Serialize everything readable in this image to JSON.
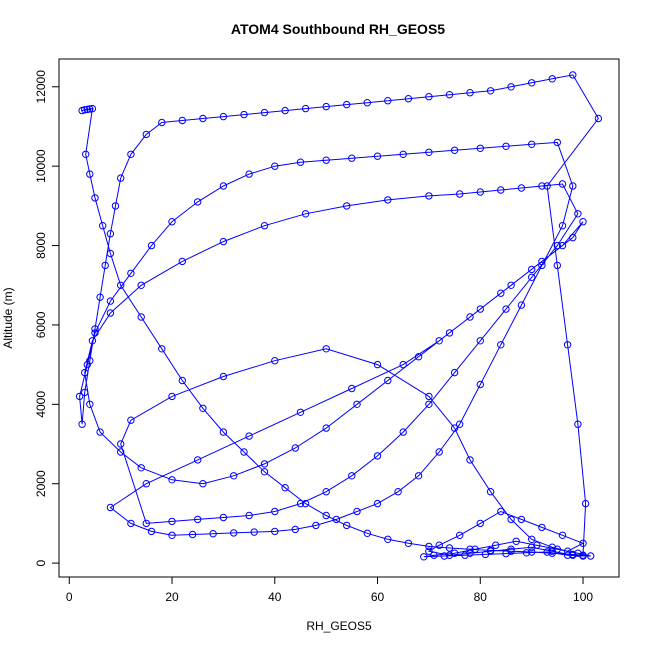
{
  "chart_data": {
    "type": "scatter",
    "title": "ATOM4 Southbound RH_GEOS5",
    "xlabel": "RH_GEOS5",
    "ylabel": "Altitude (m)",
    "xlim": [
      -2,
      107
    ],
    "ylim": [
      -350,
      12700
    ],
    "x_ticks": [
      0,
      20,
      40,
      60,
      80,
      100
    ],
    "y_ticks": [
      0,
      2000,
      4000,
      6000,
      8000,
      10000,
      12000
    ],
    "grid": false,
    "legend": "none",
    "series_color": "#0000FF",
    "connected": true,
    "marker": "open-circle",
    "x": [
      2.5,
      3.0,
      3.5,
      4.0,
      4.5,
      3.2,
      4.0,
      5.0,
      6.5,
      8.0,
      10.0,
      14.0,
      18.0,
      22.0,
      26.0,
      30.0,
      34.0,
      38.0,
      42.0,
      46.0,
      50.0,
      54.0,
      58.0,
      62.0,
      66.0,
      70.0,
      74.0,
      78.0,
      82.0,
      86.0,
      90.0,
      94.0,
      98.0,
      100.0,
      100.5,
      99.0,
      97.0,
      95.0,
      93.0,
      103.0,
      98.0,
      94.0,
      90.0,
      86.0,
      82.0,
      78.0,
      74.0,
      70.0,
      66.0,
      62.0,
      58.0,
      54.0,
      50.0,
      46.0,
      42.0,
      38.0,
      34.0,
      30.0,
      26.0,
      22.0,
      18.0,
      15.0,
      12.0,
      10.0,
      9.0,
      8.0,
      7.0,
      6.0,
      5.0,
      4.0,
      3.0,
      2.5,
      2.0,
      3.5,
      5.0,
      8.0,
      12.0,
      16.0,
      20.0,
      25.0,
      30.0,
      35.0,
      40.0,
      45.0,
      50.0,
      55.0,
      60.0,
      65.0,
      70.0,
      75.0,
      80.0,
      85.0,
      90.0,
      95.0,
      98.0,
      96.0,
      92.0,
      88.0,
      84.0,
      80.0,
      76.0,
      72.0,
      68.0,
      64.0,
      60.0,
      56.0,
      52.0,
      48.0,
      44.0,
      40.0,
      36.0,
      32.0,
      28.0,
      24.0,
      20.0,
      16.0,
      12.0,
      8.0,
      15.0,
      25.0,
      35.0,
      45.0,
      55.0,
      65.0,
      72.0,
      78.0,
      84.0,
      90.0,
      96.0,
      100.0,
      98.0,
      92.0,
      86.0,
      80.0,
      74.0,
      68.0,
      62.0,
      56.0,
      50.0,
      44.0,
      38.0,
      32.0,
      26.0,
      20.0,
      14.0,
      10.0,
      6.0,
      4.0,
      3.0,
      4.5,
      8.0,
      14.0,
      22.0,
      30.0,
      38.0,
      46.0,
      54.0,
      62.0,
      70.0,
      76.0,
      80.0,
      84.0,
      88.0,
      92.0,
      96.0,
      99.0,
      95.0,
      90.0,
      85.0,
      80.0,
      75.0,
      70.0,
      65.0,
      60.0,
      55.0,
      50.0,
      45.0,
      40.0,
      35.0,
      30.0,
      25.0,
      20.0,
      15.0,
      10.0,
      12.0,
      20.0,
      30.0,
      40.0,
      50.0,
      60.0,
      70.0,
      75.0,
      78.0,
      82.0,
      86.0,
      90.0,
      94.0,
      97.0,
      100.0,
      96.0,
      92.0,
      88.0,
      84.0,
      80.0,
      76.0,
      72.0,
      70.0,
      74.0,
      78.0,
      82.0,
      86.0,
      90.0,
      94.0,
      98.0,
      101.5,
      99.0,
      95.0,
      91.0,
      87.0,
      83.0,
      79.0,
      75.0,
      71.0,
      69.0,
      73.0,
      77.0,
      81.0,
      85.0,
      89.0,
      93.0,
      97.0,
      100.0
    ],
    "y": [
      11400,
      11420,
      11430,
      11440,
      11450,
      10300,
      9800,
      9200,
      8500,
      7800,
      7000,
      6200,
      5400,
      4600,
      3900,
      3300,
      2800,
      2300,
      1900,
      1500,
      1200,
      950,
      750,
      600,
      500,
      420,
      380,
      350,
      320,
      300,
      280,
      250,
      220,
      200,
      1500,
      3500,
      5500,
      7500,
      9500,
      11200,
      12300,
      12200,
      12100,
      12000,
      11900,
      11850,
      11800,
      11750,
      11700,
      11650,
      11600,
      11550,
      11500,
      11450,
      11400,
      11350,
      11300,
      11250,
      11200,
      11150,
      11100,
      10800,
      10300,
      9700,
      9000,
      8300,
      7500,
      6700,
      5900,
      5100,
      4300,
      3500,
      4200,
      5000,
      5800,
      6600,
      7300,
      8000,
      8600,
      9100,
      9500,
      9800,
      10000,
      10100,
      10150,
      10200,
      10250,
      10300,
      10350,
      10400,
      10450,
      10500,
      10550,
      10600,
      9500,
      8500,
      7500,
      6500,
      5500,
      4500,
      3500,
      2800,
      2200,
      1800,
      1500,
      1300,
      1100,
      950,
      850,
      800,
      780,
      760,
      740,
      720,
      700,
      800,
      1000,
      1400,
      2000,
      2600,
      3200,
      3800,
      4400,
      5000,
      5600,
      6200,
      6800,
      7400,
      8000,
      8600,
      8200,
      7600,
      7000,
      6400,
      5800,
      5200,
      4600,
      4000,
      3400,
      2900,
      2500,
      2200,
      2000,
      2100,
      2400,
      2800,
      3300,
      4000,
      4800,
      5600,
      6300,
      7000,
      7600,
      8100,
      8500,
      8800,
      9000,
      9150,
      9250,
      9300,
      9350,
      9400,
      9450,
      9500,
      9550,
      8800,
      8000,
      7200,
      6400,
      5600,
      4800,
      4000,
      3300,
      2700,
      2200,
      1800,
      1500,
      1300,
      1200,
      1150,
      1100,
      1050,
      1000,
      3000,
      3600,
      4200,
      4700,
      5100,
      5400,
      5000,
      4200,
      3400,
      2600,
      1800,
      1100,
      600,
      400,
      300,
      500,
      700,
      900,
      1100,
      1300,
      1000,
      700,
      450,
      300,
      200,
      250,
      300,
      350,
      400,
      300,
      200,
      180,
      250,
      350,
      450,
      550,
      450,
      350,
      250,
      200,
      160,
      180,
      200,
      220,
      240,
      260,
      280,
      200,
      180
    ]
  }
}
